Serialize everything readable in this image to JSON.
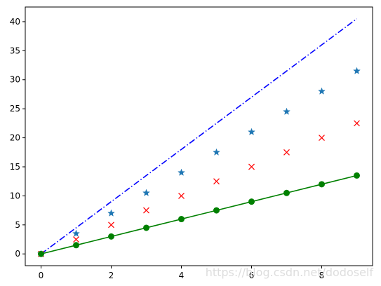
{
  "chart_data": {
    "type": "line",
    "title": "",
    "xlabel": "",
    "ylabel": "",
    "xlim": [
      -0.45,
      9.45
    ],
    "ylim": [
      -2.025,
      42.525
    ],
    "x": [
      0,
      1,
      2,
      3,
      4,
      5,
      6,
      7,
      8,
      9
    ],
    "x_ticks": [
      0,
      2,
      4,
      6,
      8
    ],
    "y_ticks": [
      0,
      5,
      10,
      15,
      20,
      25,
      30,
      35,
      40
    ],
    "grid": false,
    "legend": "none",
    "series": [
      {
        "style": "dash-dot line",
        "color": "#0000ff",
        "values": [
          0,
          4.5,
          9,
          13.5,
          18,
          22.5,
          27,
          31.5,
          36,
          40.5
        ]
      },
      {
        "style": "star markers",
        "color": "#1f77b4",
        "values": [
          0,
          3.5,
          7,
          10.5,
          14,
          17.5,
          21,
          24.5,
          28,
          31.5
        ]
      },
      {
        "style": "x markers",
        "color": "#ff0000",
        "values": [
          0,
          2.5,
          5,
          7.5,
          10,
          12.5,
          15,
          17.5,
          20,
          22.5
        ]
      },
      {
        "style": "solid line with circle markers",
        "color": "#008000",
        "values": [
          0,
          1.5,
          3,
          4.5,
          6,
          7.5,
          9,
          10.5,
          12,
          13.5
        ]
      }
    ]
  },
  "watermark": "https://blog.csdn.net/dodoself"
}
